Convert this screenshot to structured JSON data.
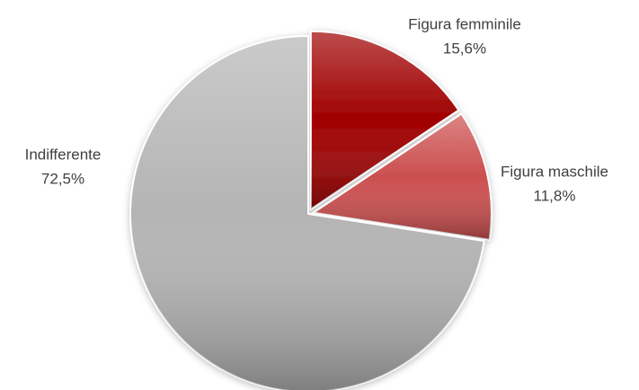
{
  "chart_data": {
    "type": "pie",
    "categories": [
      "Figura femminile",
      "Figura maschile",
      "Indifferente"
    ],
    "values": [
      15.6,
      11.8,
      72.5
    ],
    "value_labels": [
      "15,6%",
      "11,8%",
      "72,5%"
    ],
    "colors": [
      "#a00000",
      "#cc4f4f",
      "#b4b4b4"
    ]
  }
}
